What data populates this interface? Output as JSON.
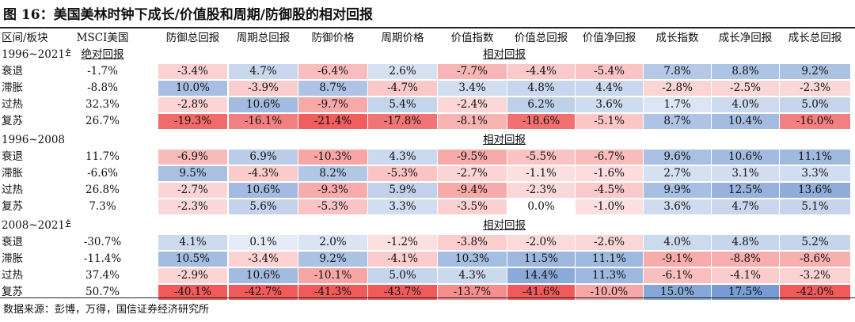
{
  "title": "图 16：美国美林时钟下成长/价值股和周期/防御股的相对回报",
  "headers": [
    "区间/板块",
    "MSCI美国",
    "防御总回报",
    "周期总回报",
    "防御价格",
    "周期价格",
    "价值指数",
    "价值总回报",
    "价值净回报",
    "成长指数",
    "成长净回报",
    "成长总回报"
  ],
  "abs_label": "绝对回报",
  "rel_label": "相对回报",
  "sections": [
    {
      "period": "1996~2021年",
      "rows": [
        {
          "label": "衰退",
          "msci": "-1.7%",
          "values": [
            "-3.4%",
            "4.7%",
            "-6.4%",
            "2.6%",
            "-7.7%",
            "-4.4%",
            "-5.4%",
            "7.8%",
            "8.8%",
            "9.2%"
          ]
        },
        {
          "label": "滞胀",
          "msci": "-8.8%",
          "values": [
            "10.0%",
            "-3.9%",
            "8.7%",
            "-4.7%",
            "3.4%",
            "4.8%",
            "4.4%",
            "-2.8%",
            "-2.5%",
            "-2.3%"
          ]
        },
        {
          "label": "过热",
          "msci": "32.3%",
          "values": [
            "-2.8%",
            "10.6%",
            "-9.7%",
            "5.4%",
            "-2.4%",
            "6.2%",
            "3.6%",
            "1.7%",
            "4.0%",
            "5.0%"
          ]
        },
        {
          "label": "复苏",
          "msci": "26.7%",
          "values": [
            "-19.3%",
            "-16.1%",
            "-21.4%",
            "-17.8%",
            "-8.1%",
            "-18.6%",
            "-5.1%",
            "8.7%",
            "10.4%",
            "-16.0%"
          ]
        }
      ]
    },
    {
      "period": "1996~2008",
      "rows": [
        {
          "label": "衰退",
          "msci": "11.7%",
          "values": [
            "-6.9%",
            "6.9%",
            "-10.3%",
            "4.3%",
            "-9.5%",
            "-5.5%",
            "-6.7%",
            "9.6%",
            "10.6%",
            "11.1%"
          ]
        },
        {
          "label": "滞胀",
          "msci": "-6.6%",
          "values": [
            "9.5%",
            "-4.3%",
            "8.2%",
            "-5.3%",
            "-2.7%",
            "-1.1%",
            "-1.6%",
            "2.7%",
            "3.1%",
            "3.3%"
          ]
        },
        {
          "label": "过热",
          "msci": "26.8%",
          "values": [
            "-2.7%",
            "10.6%",
            "-9.3%",
            "5.9%",
            "-9.4%",
            "-2.3%",
            "-4.5%",
            "9.9%",
            "12.5%",
            "13.6%"
          ]
        },
        {
          "label": "复苏",
          "msci": "7.3%",
          "values": [
            "-2.3%",
            "5.6%",
            "-5.3%",
            "3.3%",
            "-3.5%",
            "0.0%",
            "-1.0%",
            "3.6%",
            "4.7%",
            "5.1%"
          ]
        }
      ]
    },
    {
      "period": "2008~2021年",
      "rows": [
        {
          "label": "衰退",
          "msci": "-30.7%",
          "values": [
            "4.1%",
            "0.1%",
            "2.0%",
            "-1.2%",
            "-3.8%",
            "-2.0%",
            "-2.6%",
            "4.0%",
            "4.8%",
            "5.2%"
          ]
        },
        {
          "label": "滞胀",
          "msci": "-11.4%",
          "values": [
            "10.5%",
            "-3.4%",
            "9.2%",
            "-4.1%",
            "10.3%",
            "11.5%",
            "11.1%",
            "-9.1%",
            "-8.8%",
            "-8.6%"
          ]
        },
        {
          "label": "过热",
          "msci": "37.4%",
          "values": [
            "-2.9%",
            "10.6%",
            "-10.1%",
            "5.0%",
            "4.3%",
            "14.4%",
            "11.3%",
            "-6.1%",
            "-4.1%",
            "-3.2%"
          ]
        },
        {
          "label": "复苏",
          "msci": "50.7%",
          "values": [
            "-40.1%",
            "-42.7%",
            "-41.3%",
            "-43.7%",
            "-13.7%",
            "-41.6%",
            "-10.0%",
            "15.0%",
            "17.5%",
            "-42.0%"
          ]
        }
      ]
    }
  ],
  "source": "数据来源：彭博，万得，国信证券经济研究所",
  "colors": {
    "positive_max": "#5a86c8",
    "negative_max": "#f05a5a",
    "neutral": "#ffffff"
  }
}
